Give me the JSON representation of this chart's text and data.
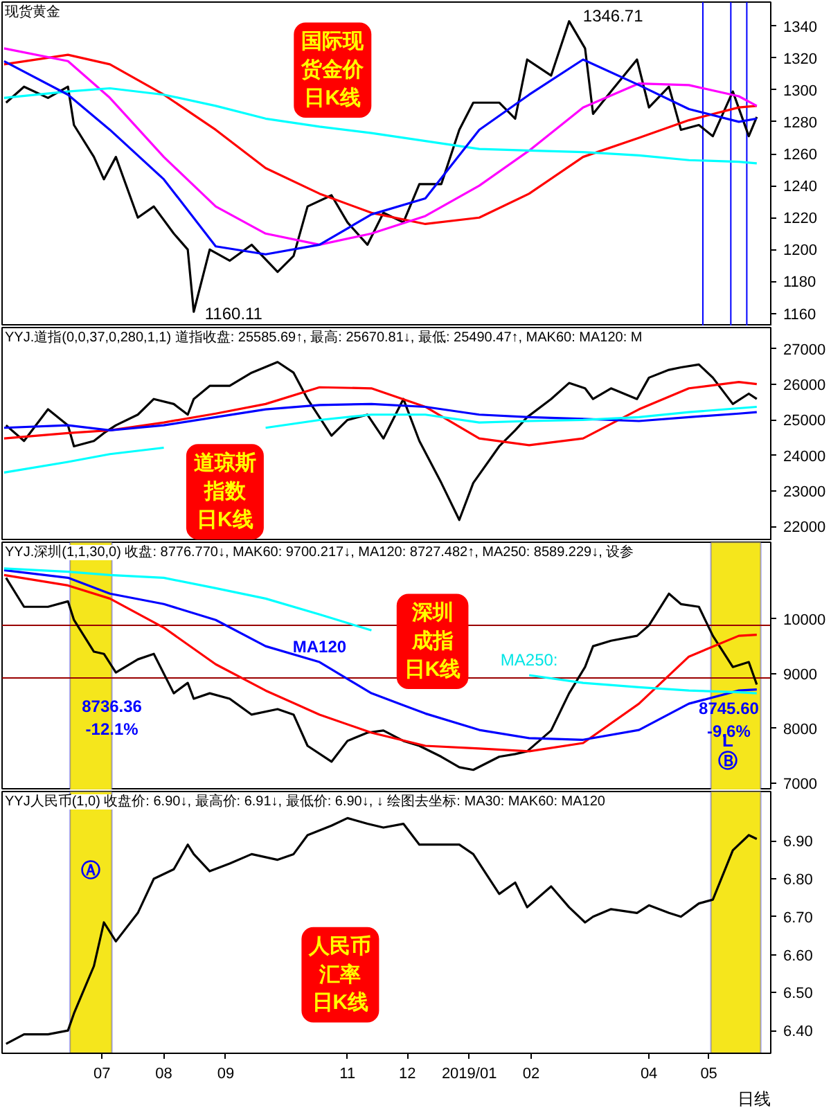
{
  "chart_data": [
    {
      "type": "line",
      "title": "现货黄金",
      "x": [
        "2018-05-14",
        "2018-05-23",
        "2018-06-04",
        "2018-06-14",
        "2018-06-17",
        "2018-06-27",
        "2018-07-02",
        "2018-07-08",
        "2018-07-19",
        "2018-07-27",
        "2018-08-06",
        "2018-08-13",
        "2018-08-16",
        "2018-08-24",
        "2018-09-03",
        "2018-09-14",
        "2018-09-27",
        "2018-10-05",
        "2018-10-12",
        "2018-10-24",
        "2018-11-01",
        "2018-11-11",
        "2018-11-19",
        "2018-11-29",
        "2018-12-07",
        "2018-12-18",
        "2018-12-27",
        "2019-01-03",
        "2019-01-16",
        "2019-01-24",
        "2019-01-30",
        "2019-02-11",
        "2019-02-20",
        "2019-02-28",
        "2019-03-04",
        "2019-03-13",
        "2019-03-26",
        "2019-04-01",
        "2019-04-11",
        "2019-04-17",
        "2019-04-26",
        "2019-05-03",
        "2019-05-13",
        "2019-05-21",
        "2019-05-25"
      ],
      "series": [
        {
          "color": "#000000",
          "values": [
            1292,
            1302,
            1295,
            1302,
            1278,
            1258,
            1244,
            1258,
            1220,
            1227,
            1210,
            1200,
            1161,
            1200,
            1193,
            1203,
            1186,
            1196,
            1227,
            1234,
            1217,
            1203,
            1223,
            1217,
            1241,
            1241,
            1275,
            1292,
            1292,
            1282,
            1319,
            1309,
            1343,
            1326,
            1285,
            1299,
            1319,
            1289,
            1302,
            1275,
            1278,
            1271,
            1299,
            1271,
            1283
          ]
        },
        {
          "color": "#ff0000",
          "x": [
            "2018-05-13",
            "2018-06-14",
            "2018-07-05",
            "2018-08-01",
            "2018-08-27",
            "2018-09-21",
            "2018-10-18",
            "2018-11-13",
            "2018-12-10",
            "2019-01-06",
            "2019-01-31",
            "2019-02-27",
            "2019-03-27",
            "2019-04-21",
            "2019-05-16",
            "2019-05-25"
          ],
          "values": [
            1316,
            1322,
            1316,
            1297,
            1275,
            1251,
            1235,
            1223,
            1216,
            1220,
            1235,
            1258,
            1270,
            1281,
            1289,
            1290
          ]
        },
        {
          "color": "#ff00ff",
          "x": [
            "2018-05-13",
            "2018-06-14",
            "2018-07-05",
            "2018-08-01",
            "2018-08-27",
            "2018-09-21",
            "2018-10-18",
            "2018-11-13",
            "2018-12-10",
            "2019-01-06",
            "2019-01-31",
            "2019-02-27",
            "2019-03-27",
            "2019-04-21",
            "2019-05-16",
            "2019-05-25"
          ],
          "values": [
            1326,
            1318,
            1295,
            1258,
            1227,
            1210,
            1203,
            1210,
            1221,
            1240,
            1262,
            1289,
            1304,
            1303,
            1296,
            1290
          ]
        },
        {
          "color": "#00ffff",
          "x": [
            "2018-05-13",
            "2018-06-14",
            "2018-07-05",
            "2018-08-01",
            "2018-08-27",
            "2018-09-21",
            "2018-10-18",
            "2018-11-13",
            "2018-12-10",
            "2019-01-06",
            "2019-01-31",
            "2019-02-27",
            "2019-03-27",
            "2019-04-21",
            "2019-05-16",
            "2019-05-25"
          ],
          "values": [
            1295,
            1299,
            1301,
            1297,
            1290,
            1282,
            1277,
            1273,
            1268,
            1263,
            1262,
            1261,
            1259,
            1256,
            1255,
            1254
          ]
        },
        {
          "color": "#0000ff",
          "x": [
            "2018-05-13",
            "2018-06-14",
            "2018-07-05",
            "2018-08-01",
            "2018-08-27",
            "2018-09-21",
            "2018-10-18",
            "2018-11-13",
            "2018-12-10",
            "2019-01-06",
            "2019-01-31",
            "2019-02-27",
            "2019-03-27",
            "2019-04-21",
            "2019-05-16",
            "2019-05-25"
          ],
          "values": [
            1318,
            1297,
            1275,
            1244,
            1202,
            1197,
            1203,
            1222,
            1232,
            1275,
            1297,
            1319,
            1303,
            1288,
            1280,
            1282
          ]
        }
      ],
      "xlim": [
        "2018-05-12",
        "2019-06-01"
      ],
      "ylim": [
        1152,
        1355
      ],
      "yticks": [
        1160,
        1180,
        1200,
        1220,
        1240,
        1260,
        1280,
        1300,
        1320,
        1340
      ],
      "tick_labels": "y",
      "ref_lines": [
        {
          "axis": "x",
          "value": "2019-04-28",
          "color": "#0000ff"
        },
        {
          "axis": "x",
          "value": "2019-05-12",
          "color": "#0000ff"
        },
        {
          "axis": "x",
          "value": "2019-05-20",
          "color": "#0000ff"
        }
      ],
      "annotations": [
        "国际现货金价日K线",
        {
          "text": "1346.71",
          "x": "2019-02-20",
          "y": 1346.71
        },
        {
          "text": "1160.11",
          "x": "2018-08-16",
          "y": 1160.11
        }
      ]
    },
    {
      "type": "line",
      "title": "YYJ.道指(0,0,37,0,280,1,1)  道指收盘: 25585.69↑, 最高: 25670.81↓, 最低: 25490.47↑, MAK60: MA120: M",
      "x": [
        "2018-05-14",
        "2018-05-23",
        "2018-06-04",
        "2018-06-14",
        "2018-06-17",
        "2018-06-27",
        "2018-07-02",
        "2018-07-08",
        "2018-07-19",
        "2018-07-27",
        "2018-08-06",
        "2018-08-13",
        "2018-08-16",
        "2018-08-24",
        "2018-09-03",
        "2018-09-14",
        "2018-09-27",
        "2018-10-05",
        "2018-10-12",
        "2018-10-24",
        "2018-11-01",
        "2018-11-11",
        "2018-11-19",
        "2018-11-29",
        "2018-12-07",
        "2018-12-18",
        "2018-12-27",
        "2019-01-03",
        "2019-01-16",
        "2019-01-24",
        "2019-01-30",
        "2019-02-11",
        "2019-02-20",
        "2019-02-28",
        "2019-03-04",
        "2019-03-13",
        "2019-03-26",
        "2019-04-01",
        "2019-04-11",
        "2019-04-17",
        "2019-04-26",
        "2019-05-03",
        "2019-05-13",
        "2019-05-21",
        "2019-05-25"
      ],
      "series": [
        {
          "color": "#000000",
          "values": [
            24850,
            24410,
            25300,
            24850,
            24260,
            24410,
            24630,
            24850,
            25150,
            25590,
            25450,
            25150,
            25590,
            25960,
            25960,
            26330,
            26630,
            26330,
            25590,
            24560,
            25000,
            25150,
            24480,
            25590,
            24410,
            23230,
            22190,
            23230,
            24260,
            24710,
            25080,
            25590,
            26040,
            25890,
            25590,
            25890,
            25590,
            26190,
            26410,
            26480,
            26560,
            26190,
            25450,
            25740,
            25590
          ]
        },
        {
          "color": "#ff0000",
          "x": [
            "2018-05-13",
            "2018-06-14",
            "2018-07-05",
            "2018-08-01",
            "2018-08-27",
            "2018-09-21",
            "2018-10-18",
            "2018-11-13",
            "2018-12-10",
            "2019-01-06",
            "2019-01-31",
            "2019-02-27",
            "2019-03-27",
            "2019-04-21",
            "2019-05-16",
            "2019-05-25"
          ],
          "values": [
            24480,
            24630,
            24710,
            24930,
            25180,
            25450,
            25920,
            25890,
            25370,
            24480,
            24290,
            24480,
            25300,
            25890,
            26070,
            26010
          ]
        },
        {
          "color": "#0000ff",
          "x": [
            "2018-05-13",
            "2018-06-14",
            "2018-07-05",
            "2018-08-01",
            "2018-08-27",
            "2018-09-21",
            "2018-10-18",
            "2018-11-13",
            "2018-12-10",
            "2019-01-06",
            "2019-01-31",
            "2019-02-27",
            "2019-03-27",
            "2019-04-21",
            "2019-05-16",
            "2019-05-25"
          ],
          "values": [
            24780,
            24850,
            24710,
            24850,
            25080,
            25300,
            25420,
            25450,
            25370,
            25150,
            25080,
            25030,
            24970,
            25080,
            25180,
            25220
          ]
        },
        {
          "color": "#00ffff",
          "x": [
            "2018-05-13",
            "2018-06-14",
            "2018-07-05",
            "2018-08-01",
            "2018-08-27",
            "2018-09-21",
            "2018-10-18",
            "2018-11-13",
            "2018-12-10",
            "2019-01-06",
            "2019-01-31",
            "2019-02-27",
            "2019-03-27",
            "2019-04-21",
            "2019-05-16",
            "2019-05-25"
          ],
          "values": [
            23520,
            23820,
            24040,
            24220,
            null,
            24780,
            25000,
            25150,
            25150,
            24930,
            24970,
            25000,
            25080,
            25220,
            25330,
            25370
          ]
        }
      ],
      "xlim": [
        "2018-05-12",
        "2019-06-01"
      ],
      "ylim": [
        21600,
        27600
      ],
      "yticks": [
        22000,
        23000,
        24000,
        25000,
        26000,
        27000
      ],
      "tick_labels": "y",
      "annotations": [
        "道琼斯指数日K线"
      ]
    },
    {
      "type": "line",
      "title": "YYJ.深圳(1,1,30,0)  收盘: 8776.770↓, MAK60: 9700.217↓, MA120: 8727.482↑, MA250: 8589.229↓, 设参",
      "x": [
        "2018-05-14",
        "2018-05-23",
        "2018-06-04",
        "2018-06-14",
        "2018-06-17",
        "2018-06-27",
        "2018-07-02",
        "2018-07-08",
        "2018-07-19",
        "2018-07-27",
        "2018-08-06",
        "2018-08-13",
        "2018-08-16",
        "2018-08-24",
        "2018-09-03",
        "2018-09-14",
        "2018-09-27",
        "2018-10-05",
        "2018-10-12",
        "2018-10-24",
        "2018-11-01",
        "2018-11-11",
        "2018-11-19",
        "2018-11-29",
        "2018-12-07",
        "2018-12-18",
        "2018-12-27",
        "2019-01-03",
        "2019-01-16",
        "2019-01-24",
        "2019-01-30",
        "2019-02-11",
        "2019-02-20",
        "2019-02-28",
        "2019-03-04",
        "2019-03-13",
        "2019-03-26",
        "2019-04-01",
        "2019-04-11",
        "2019-04-17",
        "2019-04-26",
        "2019-05-03",
        "2019-05-13",
        "2019-05-21",
        "2019-05-25"
      ],
      "series": [
        {
          "color": "#000000",
          "values": [
            10750,
            10220,
            10220,
            10320,
            9980,
            9400,
            9360,
            9020,
            9260,
            9360,
            8640,
            8830,
            8540,
            8640,
            8540,
            8250,
            8350,
            8250,
            7680,
            7390,
            7770,
            7920,
            7960,
            7770,
            7680,
            7480,
            7290,
            7240,
            7480,
            7530,
            7580,
            7960,
            8640,
            9120,
            9500,
            9600,
            9690,
            9880,
            10460,
            10270,
            10220,
            9690,
            9120,
            9210,
            8800
          ]
        },
        {
          "color": "#ff0000",
          "x": [
            "2018-05-13",
            "2018-06-14",
            "2018-07-05",
            "2018-08-01",
            "2018-08-27",
            "2018-09-21",
            "2018-10-18",
            "2018-11-13",
            "2018-12-10",
            "2019-01-06",
            "2019-01-31",
            "2019-02-27",
            "2019-03-27",
            "2019-04-21",
            "2019-05-16",
            "2019-05-25"
          ],
          "values": [
            10800,
            10610,
            10370,
            9840,
            9170,
            8690,
            8250,
            7920,
            7680,
            7630,
            7580,
            7730,
            8450,
            9310,
            9690,
            9710
          ]
        },
        {
          "color": "#0000ff",
          "x": [
            "2018-05-13",
            "2018-06-14",
            "2018-07-05",
            "2018-08-01",
            "2018-08-27",
            "2018-09-21",
            "2018-10-18",
            "2018-11-13",
            "2018-12-10",
            "2019-01-06",
            "2019-01-31",
            "2019-02-27",
            "2019-03-27",
            "2019-04-21",
            "2019-05-16",
            "2019-05-25"
          ],
          "values": [
            10890,
            10750,
            10460,
            10270,
            9980,
            9500,
            9210,
            8640,
            8270,
            7970,
            7820,
            7790,
            7970,
            8450,
            8690,
            8710
          ]
        },
        {
          "color": "#00ffff",
          "x": [
            "2018-05-13",
            "2018-06-14",
            "2018-07-05",
            "2018-08-01",
            "2018-08-27",
            "2018-09-21",
            "2018-10-18",
            "2018-11-13",
            "2018-12-10",
            "2019-01-06",
            "2019-01-31",
            "2019-02-27",
            "2019-03-27",
            "2019-04-21",
            "2019-05-16",
            "2019-05-25"
          ],
          "values": [
            10920,
            10860,
            10800,
            10750,
            10560,
            10370,
            10080,
            9790,
            null,
            null,
            8970,
            8830,
            8750,
            8690,
            8660,
            8640
          ]
        }
      ],
      "xlim": [
        "2018-05-12",
        "2019-06-01"
      ],
      "ylim": [
        6870,
        11400
      ],
      "yticks": [
        7000,
        8000,
        9000,
        10000
      ],
      "tick_labels": "y",
      "ref_lines": [
        {
          "axis": "y",
          "value": 9880,
          "color": "#990000"
        },
        {
          "axis": "y",
          "value": 8920,
          "color": "#990000"
        }
      ],
      "bands": [
        {
          "axis": "x",
          "from": "2018-06-15",
          "to": "2018-07-06",
          "color": "#f5e61c"
        },
        {
          "axis": "x",
          "from": "2019-05-02",
          "to": "2019-05-27",
          "color": "#f5e61c"
        }
      ],
      "annotations": [
        "深圳成指日K线",
        {
          "text": "MA120",
          "x": "2018-10-18",
          "y": 9210
        },
        {
          "text": "MA250:",
          "x": "2019-01-31",
          "y": 8970
        },
        {
          "text": "8736.36\n-12.1%",
          "x": "2018-07-06",
          "y": 8736.36
        },
        {
          "text": "8745.60\n-9.6%",
          "x": "2019-05-11",
          "y": 8745.6
        },
        "L",
        "Ⓑ"
      ]
    },
    {
      "type": "line",
      "title": "YYJ人民币(1,0)  收盘价: 6.90↓, 最高价: 6.91↓, 最低价: 6.90↓,     ↓   绘图去坐标: MA30: MAK60: MA120",
      "xlabel": "日线",
      "x": [
        "2018-05-14",
        "2018-05-23",
        "2018-06-04",
        "2018-06-14",
        "2018-06-17",
        "2018-06-27",
        "2018-07-02",
        "2018-07-08",
        "2018-07-19",
        "2018-07-27",
        "2018-08-06",
        "2018-08-13",
        "2018-08-16",
        "2018-08-24",
        "2018-09-03",
        "2018-09-14",
        "2018-09-27",
        "2018-10-05",
        "2018-10-12",
        "2018-10-24",
        "2018-11-01",
        "2018-11-11",
        "2018-11-19",
        "2018-11-29",
        "2018-12-07",
        "2018-12-18",
        "2018-12-27",
        "2019-01-03",
        "2019-01-16",
        "2019-01-24",
        "2019-01-30",
        "2019-02-11",
        "2019-02-20",
        "2019-02-28",
        "2019-03-04",
        "2019-03-13",
        "2019-03-26",
        "2019-04-01",
        "2019-04-11",
        "2019-04-17",
        "2019-04-26",
        "2019-05-03",
        "2019-05-13",
        "2019-05-21",
        "2019-05-25"
      ],
      "series": [
        {
          "color": "#000000",
          "values": [
            6.365,
            6.39,
            6.39,
            6.4,
            6.445,
            6.57,
            6.685,
            6.635,
            6.71,
            6.8,
            6.825,
            6.89,
            6.865,
            6.82,
            6.84,
            6.865,
            6.85,
            6.865,
            6.915,
            6.94,
            6.96,
            6.945,
            6.935,
            6.945,
            6.89,
            6.89,
            6.89,
            6.865,
            6.76,
            6.79,
            6.725,
            6.78,
            6.725,
            6.685,
            6.7,
            6.72,
            6.71,
            6.73,
            6.71,
            6.7,
            6.735,
            6.745,
            6.875,
            6.915,
            6.905
          ]
        }
      ],
      "xlim": [
        "2018-05-12",
        "2019-06-01"
      ],
      "ylim": [
        6.34,
        7.03
      ],
      "yticks": [
        {
          "value": 6.4,
          "label": "6.40"
        },
        {
          "value": 6.5,
          "label": "6.50"
        },
        {
          "value": 6.6,
          "label": "6.60"
        },
        {
          "value": 6.7,
          "label": "6.70"
        },
        {
          "value": 6.8,
          "label": "6.80"
        },
        {
          "value": 6.9,
          "label": "6.90"
        }
      ],
      "xticks": [
        {
          "value": "2018-07-01",
          "label": "07"
        },
        {
          "value": "2018-08-01",
          "label": "08"
        },
        {
          "value": "2018-09-01",
          "label": "09"
        },
        {
          "value": "2018-11-01",
          "label": "11"
        },
        {
          "value": "2018-12-01",
          "label": "12"
        },
        {
          "value": "2019-01-01",
          "label": "2019/01"
        },
        {
          "value": "2019-02-01",
          "label": "02"
        },
        {
          "value": "2019-04-01",
          "label": "04"
        },
        {
          "value": "2019-05-01",
          "label": "05"
        }
      ],
      "bands": [
        {
          "axis": "x",
          "from": "2018-06-15",
          "to": "2018-07-06",
          "color": "#f5e61c"
        },
        {
          "axis": "x",
          "from": "2019-05-02",
          "to": "2019-05-27",
          "color": "#f5e61c"
        }
      ],
      "annotations": [
        "人民币汇率日K线",
        "Ⓐ"
      ]
    }
  ]
}
